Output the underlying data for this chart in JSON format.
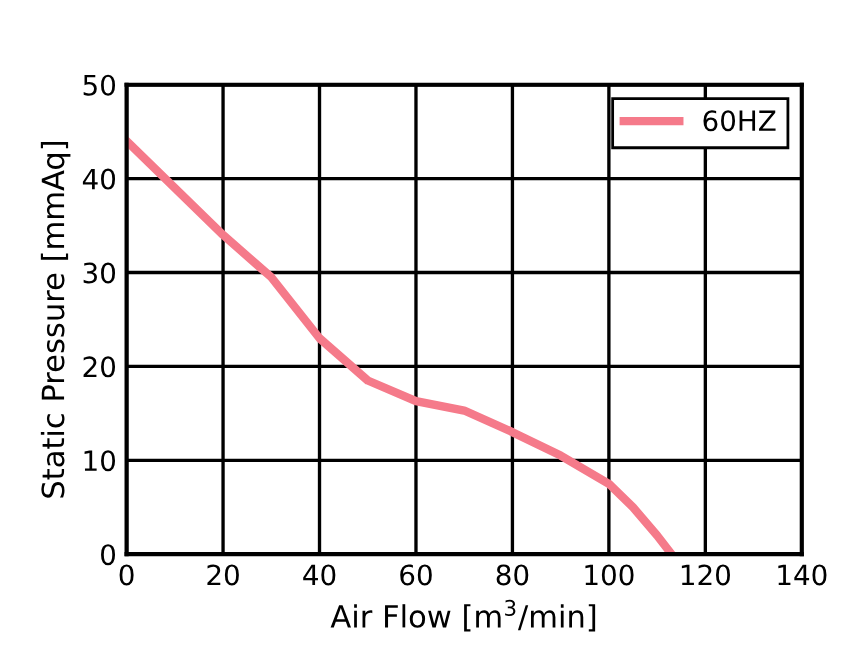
{
  "chart_data": {
    "type": "line",
    "xlabel": "Air Flow [m$^{3}$/min]",
    "ylabel": "Static Pressure [mmAq]",
    "series": [
      {
        "name": "60HZ",
        "color": "#f57a8a",
        "x": [
          0,
          10,
          20,
          30,
          40,
          50,
          60,
          70,
          80,
          90,
          100,
          105,
          110,
          113
        ],
        "values": [
          44,
          39,
          34,
          29.5,
          23,
          18.5,
          16.3,
          15.3,
          13,
          10.5,
          7.5,
          5,
          2,
          0
        ]
      }
    ],
    "xlim": [
      0,
      140
    ],
    "xticks": [
      0,
      20,
      40,
      60,
      80,
      100,
      120,
      140
    ],
    "ylim": [
      0,
      50
    ],
    "yticks": [
      0,
      10,
      20,
      30,
      40,
      50
    ],
    "grid": true,
    "legend": "top right",
    "marker": "none",
    "line_style": "solid"
  }
}
